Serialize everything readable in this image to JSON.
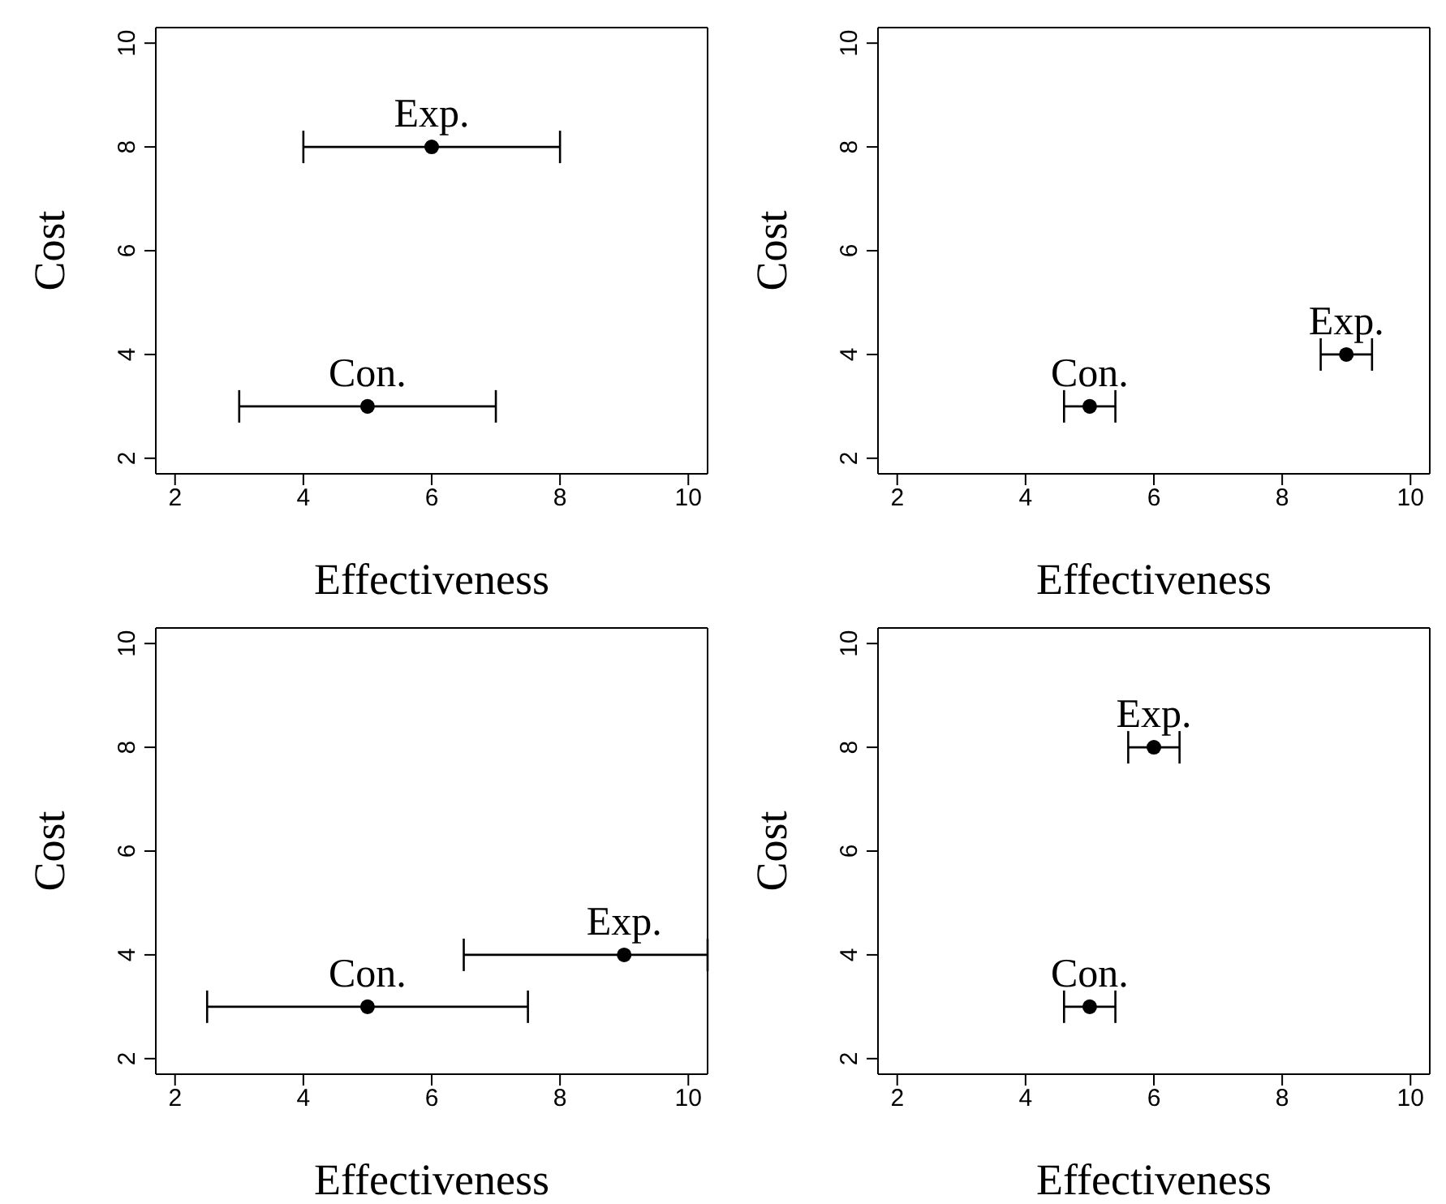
{
  "chart_data": [
    {
      "type": "scatter",
      "xlabel": "Effectiveness",
      "ylabel": "Cost",
      "xlim": [
        1.7,
        10.3
      ],
      "ylim": [
        1.7,
        10.3
      ],
      "xticks": [
        2,
        4,
        6,
        8,
        10
      ],
      "yticks": [
        2,
        4,
        6,
        8,
        10
      ],
      "grid": false,
      "legend": false,
      "marker": "circle",
      "series": [
        {
          "name": "Exp.",
          "color": "#000000",
          "x": [
            6
          ],
          "values": [
            8
          ],
          "xerrors": [
            [
              4,
              8
            ]
          ]
        },
        {
          "name": "Con.",
          "color": "#000000",
          "x": [
            5
          ],
          "values": [
            3
          ],
          "xerrors": [
            [
              3,
              7
            ]
          ]
        }
      ]
    },
    {
      "type": "scatter",
      "xlabel": "Effectiveness",
      "ylabel": "Cost",
      "xlim": [
        1.7,
        10.3
      ],
      "ylim": [
        1.7,
        10.3
      ],
      "xticks": [
        2,
        4,
        6,
        8,
        10
      ],
      "yticks": [
        2,
        4,
        6,
        8,
        10
      ],
      "grid": false,
      "legend": false,
      "marker": "circle",
      "series": [
        {
          "name": "Exp.",
          "color": "#000000",
          "x": [
            9
          ],
          "values": [
            4
          ],
          "xerrors": [
            [
              8.6,
              9.4
            ]
          ]
        },
        {
          "name": "Con.",
          "color": "#000000",
          "x": [
            5
          ],
          "values": [
            3
          ],
          "xerrors": [
            [
              4.6,
              5.4
            ]
          ]
        }
      ]
    },
    {
      "type": "scatter",
      "xlabel": "Effectiveness",
      "ylabel": "Cost",
      "xlim": [
        1.7,
        10.3
      ],
      "ylim": [
        1.7,
        10.3
      ],
      "xticks": [
        2,
        4,
        6,
        8,
        10
      ],
      "yticks": [
        2,
        4,
        6,
        8,
        10
      ],
      "grid": false,
      "legend": false,
      "marker": "circle",
      "series": [
        {
          "name": "Exp.",
          "color": "#000000",
          "x": [
            9
          ],
          "values": [
            4
          ],
          "xerrors": [
            [
              6.5,
              10.3
            ]
          ]
        },
        {
          "name": "Con.",
          "color": "#000000",
          "x": [
            5
          ],
          "values": [
            3
          ],
          "xerrors": [
            [
              2.5,
              7.5
            ]
          ]
        }
      ]
    },
    {
      "type": "scatter",
      "xlabel": "Effectiveness",
      "ylabel": "Cost",
      "xlim": [
        1.7,
        10.3
      ],
      "ylim": [
        1.7,
        10.3
      ],
      "xticks": [
        2,
        4,
        6,
        8,
        10
      ],
      "yticks": [
        2,
        4,
        6,
        8,
        10
      ],
      "grid": false,
      "legend": false,
      "marker": "circle",
      "series": [
        {
          "name": "Exp.",
          "color": "#000000",
          "x": [
            6
          ],
          "values": [
            8
          ],
          "xerrors": [
            [
              5.6,
              6.4
            ]
          ]
        },
        {
          "name": "Con.",
          "color": "#000000",
          "x": [
            5
          ],
          "values": [
            3
          ],
          "xerrors": [
            [
              4.6,
              5.4
            ]
          ]
        }
      ]
    }
  ]
}
